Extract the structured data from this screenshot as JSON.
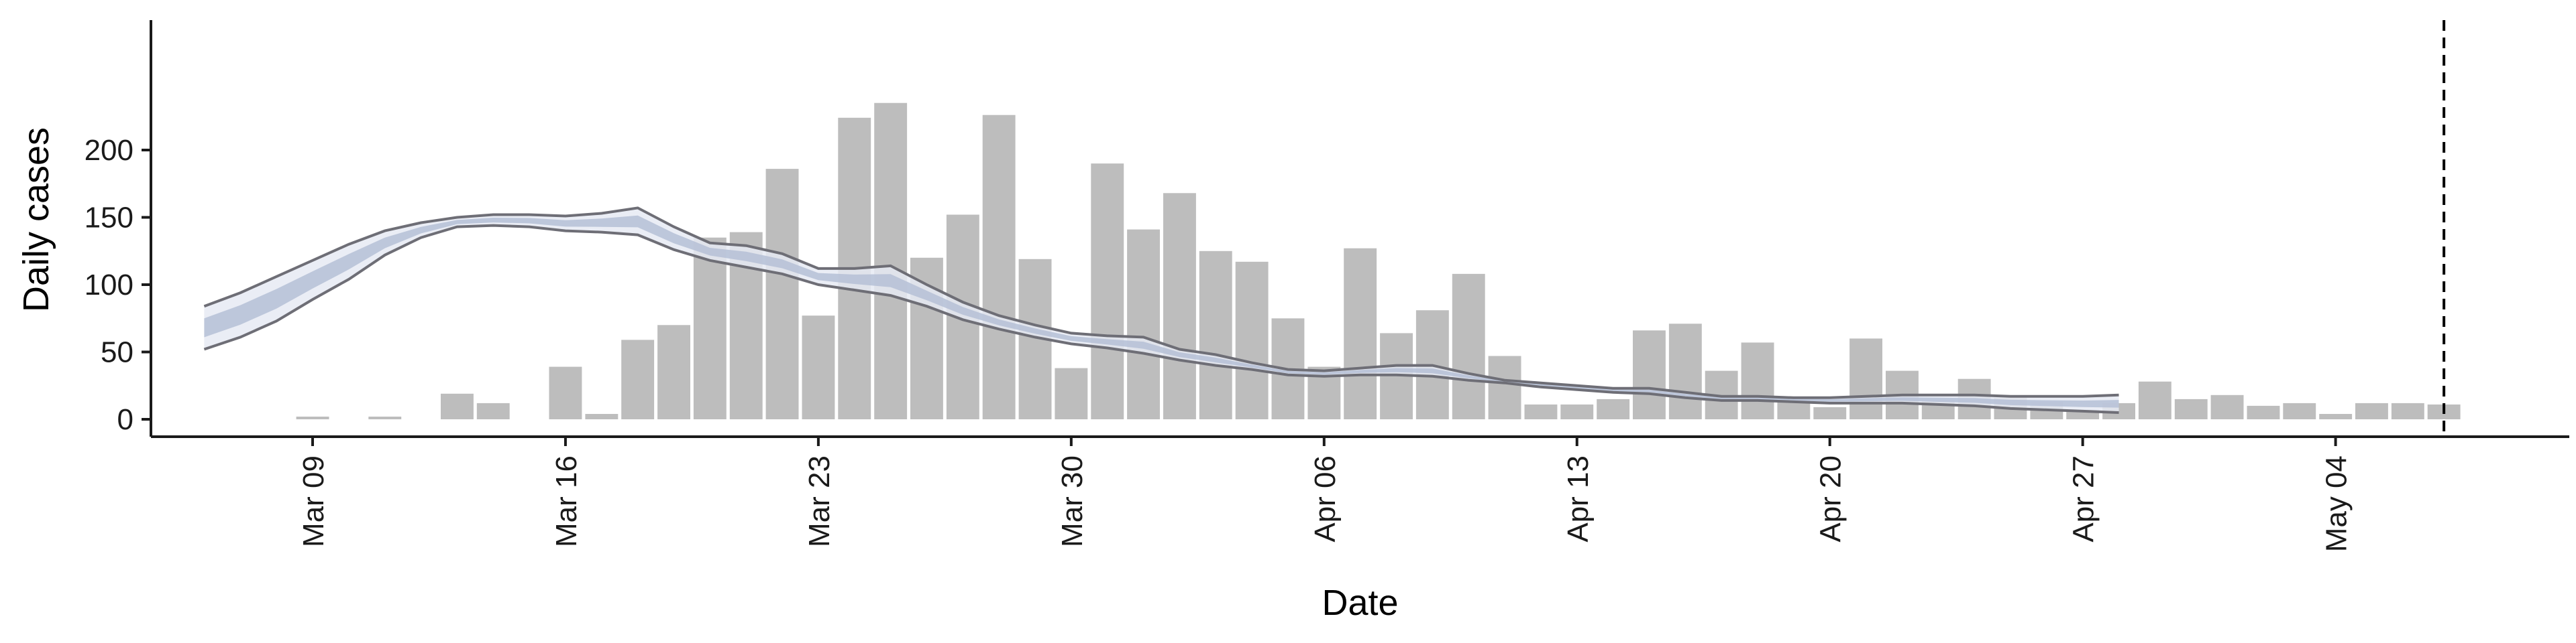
{
  "chart_data": {
    "type": "bar",
    "xlabel": "Date",
    "ylabel": "Daily cases",
    "ylim": [
      0,
      240
    ],
    "y_ticks": [
      0,
      50,
      100,
      150,
      200
    ],
    "grid": false,
    "x_ticks": [
      {
        "label": "Mar 09",
        "day": 9
      },
      {
        "label": "Mar 16",
        "day": 16
      },
      {
        "label": "Mar 23",
        "day": 23
      },
      {
        "label": "Mar 30",
        "day": 30
      },
      {
        "label": "Apr 06",
        "day": 37
      },
      {
        "label": "Apr 13",
        "day": 44
      },
      {
        "label": "Apr 20",
        "day": 51
      },
      {
        "label": "Apr 27",
        "day": 58
      },
      {
        "label": "May 04",
        "day": 65
      }
    ],
    "x_range_days": [
      5,
      72
    ],
    "bar_days": [
      9,
      10,
      11,
      12,
      13,
      14,
      15,
      16,
      17,
      18,
      19,
      20,
      21,
      22,
      23,
      24,
      25,
      26,
      27,
      28,
      29,
      30,
      31,
      32,
      33,
      34,
      35,
      36,
      37,
      38,
      39,
      40,
      41,
      42,
      43,
      44,
      45,
      46,
      47,
      48,
      49,
      50,
      51,
      52,
      53,
      54,
      55,
      56,
      57,
      58,
      59,
      60,
      61,
      62,
      63,
      64,
      65,
      66,
      67,
      68
    ],
    "values": [
      2,
      0,
      2,
      0,
      19,
      12,
      0,
      39,
      4,
      59,
      70,
      135,
      139,
      186,
      77,
      224,
      235,
      120,
      152,
      226,
      119,
      38,
      190,
      141,
      168,
      125,
      117,
      75,
      39,
      127,
      64,
      81,
      108,
      47,
      11,
      11,
      15,
      66,
      71,
      36,
      57,
      14,
      9,
      60,
      36,
      14,
      30,
      16,
      13,
      7,
      12,
      28,
      15,
      18,
      10,
      12,
      4,
      12,
      12,
      11
    ],
    "reference_line_day": 68,
    "estimate_days": [
      6,
      7,
      8,
      9,
      10,
      11,
      12,
      13,
      14,
      15,
      16,
      17,
      18,
      19,
      20,
      21,
      22,
      23,
      24,
      25,
      26,
      27,
      28,
      29,
      30,
      31,
      32,
      33,
      34,
      35,
      36,
      37,
      38,
      39,
      40,
      41,
      42,
      43,
      44,
      45,
      46,
      47,
      48,
      49,
      50,
      51,
      52,
      53,
      54,
      55,
      56,
      57,
      58,
      59
    ],
    "estimate_upper": [
      84,
      94,
      106,
      118,
      130,
      140,
      146,
      150,
      152,
      152,
      151,
      153,
      157,
      143,
      131,
      129,
      123,
      112,
      112,
      114,
      100,
      87,
      77,
      70,
      64,
      62,
      61,
      52,
      48,
      42,
      37,
      36,
      38,
      40,
      40,
      34,
      29,
      27,
      25,
      23,
      23,
      20,
      17,
      17,
      16,
      16,
      17,
      18,
      18,
      18,
      17,
      17,
      17,
      18
    ],
    "estimate_lower": [
      52,
      61,
      73,
      89,
      104,
      122,
      135,
      143,
      144,
      143,
      140,
      139,
      137,
      126,
      118,
      113,
      108,
      100,
      96,
      92,
      84,
      74,
      67,
      61,
      56,
      53,
      49,
      44,
      40,
      37,
      33,
      32,
      33,
      33,
      32,
      29,
      27,
      24,
      22,
      20,
      19,
      16,
      14,
      14,
      13,
      12,
      12,
      12,
      11,
      10,
      8,
      7,
      6,
      5
    ],
    "colors": {
      "bar": "#bdbdbd",
      "ribbon_outer": "#e6eaf3",
      "ribbon_inner": "#b5bfd6",
      "ribbon_line": "#6e6e76",
      "axis": "#1a1a1a",
      "reference_line": "#000000"
    }
  }
}
